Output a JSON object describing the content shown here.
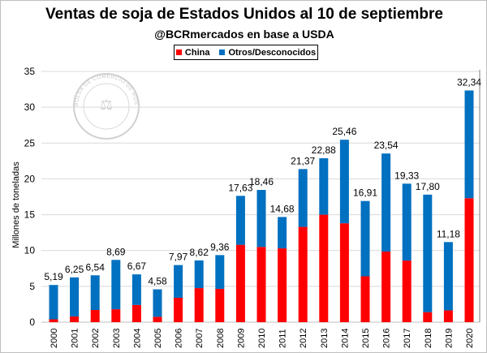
{
  "chart_data": {
    "type": "bar",
    "stacked": true,
    "title": "Ventas de soja de Estados Unidos al 10 de septiembre",
    "subtitle": "@BCRmercados en base a USDA",
    "ylabel": "Millones de toneladas",
    "xlabel": "",
    "ylim": [
      0,
      35
    ],
    "yticks": [
      0,
      5,
      10,
      15,
      20,
      25,
      30,
      35
    ],
    "grid": true,
    "legend_position": "top",
    "watermark": "BOLSA DE COMERCIO DE ROSARIO",
    "categories": [
      "2000",
      "2001",
      "2002",
      "2003",
      "2004",
      "2005",
      "2006",
      "2007",
      "2008",
      "2009",
      "2010",
      "2011",
      "2012",
      "2013",
      "2014",
      "2015",
      "2016",
      "2017",
      "2018",
      "2019",
      "2020"
    ],
    "totals_labels": [
      "5,19",
      "6,25",
      "6,54",
      "8,69",
      "6,67",
      "4,58",
      "7,97",
      "8,62",
      "9,36",
      "17,63",
      "18,46",
      "14,68",
      "21,37",
      "22,88",
      "25,46",
      "16,91",
      "23,54",
      "19,33",
      "17,80",
      "11,18",
      "32,34"
    ],
    "series": [
      {
        "name": "China",
        "color": "#ff0000",
        "values": [
          0.4,
          0.8,
          1.7,
          1.8,
          2.4,
          0.75,
          3.4,
          4.75,
          4.65,
          10.8,
          10.5,
          10.3,
          13.3,
          15.0,
          13.8,
          6.4,
          9.85,
          8.6,
          1.4,
          1.65,
          17.3
        ]
      },
      {
        "name": "Otros/Desconocidos",
        "color": "#0070c0",
        "values": [
          4.79,
          5.45,
          4.84,
          6.89,
          4.27,
          3.83,
          4.57,
          3.87,
          4.71,
          6.83,
          7.96,
          4.38,
          8.07,
          7.88,
          11.66,
          10.51,
          13.69,
          10.73,
          16.4,
          9.53,
          15.04
        ]
      }
    ]
  }
}
